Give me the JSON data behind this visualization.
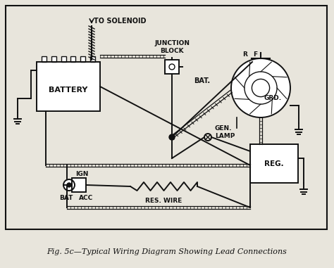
{
  "title": "Fig. 5c—Typical Wiring Diagram Showing Lead Connections",
  "bg_color": "#e8e5dc",
  "line_color": "#111111",
  "text_color": "#111111",
  "labels": {
    "to_solenoid": "TO SOLENOID",
    "junction_block": "JUNCTION\nBLOCK",
    "battery": "BATTERY",
    "bat_alt": "BAT.",
    "rf": "R",
    "f": "F",
    "grd": "GRD.",
    "gen_lamp": "GEN.\nLAMP",
    "reg": "REG.",
    "ign": "IGN",
    "bat_sw": "BAT",
    "acc": "ACC",
    "res_wire": "RES. WIRE"
  },
  "figsize": [
    4.74,
    3.81
  ],
  "dpi": 100
}
